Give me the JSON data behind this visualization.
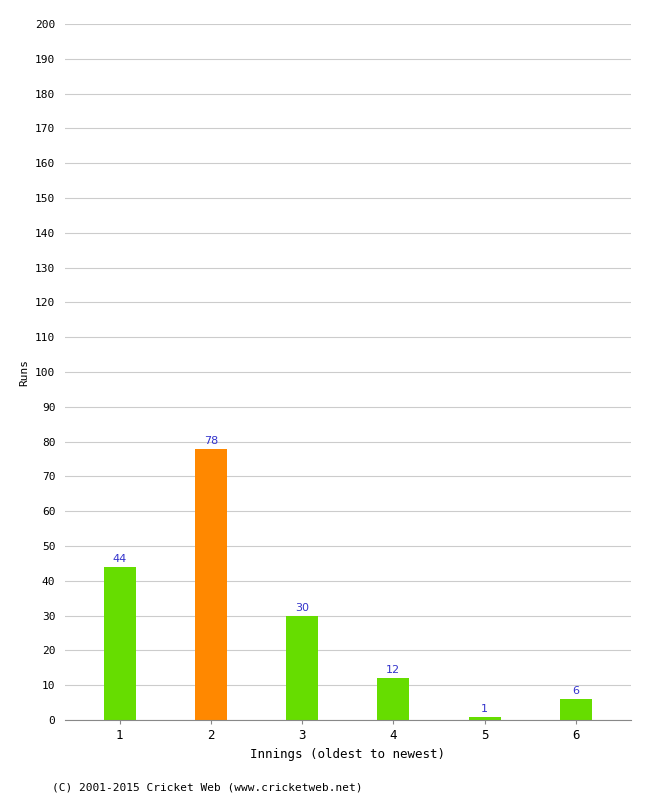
{
  "categories": [
    "1",
    "2",
    "3",
    "4",
    "5",
    "6"
  ],
  "values": [
    44,
    78,
    30,
    12,
    1,
    6
  ],
  "bar_colors": [
    "#66dd00",
    "#ff8800",
    "#66dd00",
    "#66dd00",
    "#66dd00",
    "#66dd00"
  ],
  "xlabel": "Innings (oldest to newest)",
  "ylabel": "Runs",
  "ylim": [
    0,
    200
  ],
  "yticks": [
    0,
    10,
    20,
    30,
    40,
    50,
    60,
    70,
    80,
    90,
    100,
    110,
    120,
    130,
    140,
    150,
    160,
    170,
    180,
    190,
    200
  ],
  "label_color": "#3333cc",
  "background_color": "#ffffff",
  "footer": "(C) 2001-2015 Cricket Web (www.cricketweb.net)",
  "bar_width": 0.35,
  "grid_color": "#cccccc"
}
